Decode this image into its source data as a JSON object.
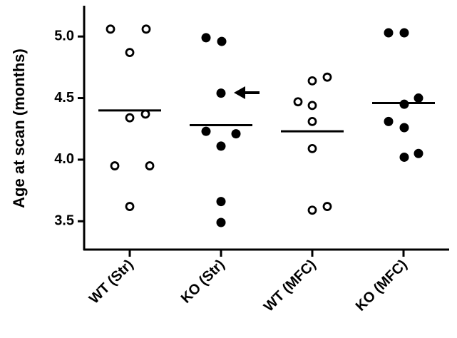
{
  "chart_data": {
    "type": "dot",
    "y_label": "Age at scan (months)",
    "categories": [
      "WT (Str)",
      "KO (Str)",
      "WT (MFC)",
      "KO (MFC)"
    ],
    "groups": [
      {
        "values": [
          5.06,
          5.06,
          4.87,
          4.37,
          4.34,
          3.95,
          3.95,
          3.62
        ],
        "mean": 4.4,
        "filled": false,
        "color": "#000000"
      },
      {
        "values": [
          4.99,
          4.96,
          4.54,
          4.23,
          4.21,
          4.11,
          3.66,
          3.49
        ],
        "mean": 4.28,
        "filled": true,
        "color": "#000000"
      },
      {
        "values": [
          4.47,
          4.64,
          4.67,
          4.44,
          4.31,
          4.09,
          3.59,
          3.62
        ],
        "mean": 4.23,
        "filled": false,
        "color": "#000000"
      },
      {
        "values": [
          5.03,
          5.03,
          4.5,
          4.45,
          4.31,
          4.26,
          4.02,
          4.05
        ],
        "mean": 4.46,
        "filled": true,
        "color": "#000000"
      }
    ],
    "ylim": [
      3.27,
      5.25
    ],
    "yticks": [
      3.5,
      {
        "value": 4,
        "label": "4.0"
      },
      4.5,
      {
        "value": 5,
        "label": "5.0"
      }
    ]
  }
}
